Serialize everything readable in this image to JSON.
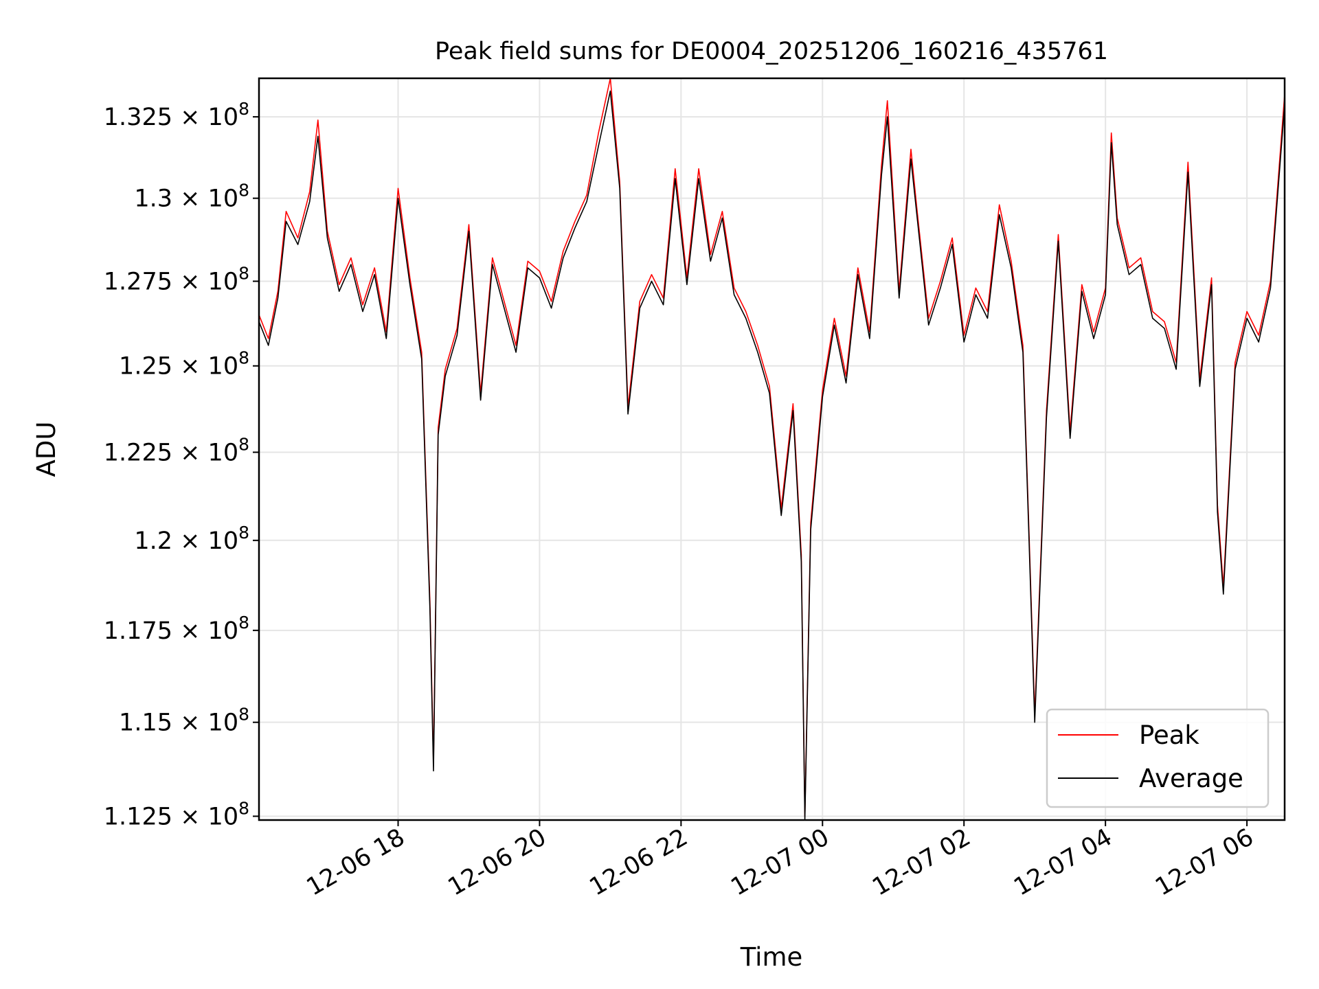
{
  "chart_data": {
    "type": "line",
    "title": "Peak field sums for DE0004_20251206_160216_435761",
    "xlabel": "Time",
    "ylabel": "ADU",
    "x_start": "2025-12-06 16:02",
    "x_end": "2025-12-07 06:32",
    "xlim": [
      "2025-12-06 16:02",
      "2025-12-07 06:32"
    ],
    "ylim": [
      112400000,
      133700000
    ],
    "x_ticks": [
      {
        "value": "2025-12-06 18:00",
        "label": "12-06 18"
      },
      {
        "value": "2025-12-06 20:00",
        "label": "12-06 20"
      },
      {
        "value": "2025-12-06 22:00",
        "label": "12-06 22"
      },
      {
        "value": "2025-12-07 00:00",
        "label": "12-07 00"
      },
      {
        "value": "2025-12-07 02:00",
        "label": "12-07 02"
      },
      {
        "value": "2025-12-07 04:00",
        "label": "12-07 04"
      },
      {
        "value": "2025-12-07 06:00",
        "label": "12-07 06"
      }
    ],
    "y_ticks": [
      {
        "value": 112500000,
        "mantissa": "1.125"
      },
      {
        "value": 115000000,
        "mantissa": "1.15"
      },
      {
        "value": 117500000,
        "mantissa": "1.175"
      },
      {
        "value": 120000000,
        "mantissa": "1.2"
      },
      {
        "value": 122500000,
        "mantissa": "1.225"
      },
      {
        "value": 125000000,
        "mantissa": "1.25"
      },
      {
        "value": 127500000,
        "mantissa": "1.275"
      },
      {
        "value": 130000000,
        "mantissa": "1.3"
      },
      {
        "value": 132500000,
        "mantissa": "1.325"
      }
    ],
    "y_tick_multiplier": "× 10",
    "y_tick_exponent": "8",
    "y_scale": "log",
    "grid": true,
    "legend_position": "lower-right",
    "series": [
      {
        "name": "Peak",
        "color": "#ff0000",
        "x": [
          "2025-12-06 16:02",
          "2025-12-06 16:10",
          "2025-12-06 16:18",
          "2025-12-06 16:25",
          "2025-12-06 16:35",
          "2025-12-06 16:45",
          "2025-12-06 16:52",
          "2025-12-06 17:00",
          "2025-12-06 17:10",
          "2025-12-06 17:20",
          "2025-12-06 17:30",
          "2025-12-06 17:40",
          "2025-12-06 17:50",
          "2025-12-06 18:00",
          "2025-12-06 18:10",
          "2025-12-06 18:20",
          "2025-12-06 18:27",
          "2025-12-06 18:30",
          "2025-12-06 18:34",
          "2025-12-06 18:40",
          "2025-12-06 18:50",
          "2025-12-06 19:00",
          "2025-12-06 19:10",
          "2025-12-06 19:20",
          "2025-12-06 19:30",
          "2025-12-06 19:40",
          "2025-12-06 19:50",
          "2025-12-06 20:00",
          "2025-12-06 20:10",
          "2025-12-06 20:20",
          "2025-12-06 20:30",
          "2025-12-06 20:40",
          "2025-12-06 20:50",
          "2025-12-06 21:00",
          "2025-12-06 21:08",
          "2025-12-06 21:15",
          "2025-12-06 21:25",
          "2025-12-06 21:35",
          "2025-12-06 21:45",
          "2025-12-06 21:55",
          "2025-12-06 22:05",
          "2025-12-06 22:15",
          "2025-12-06 22:25",
          "2025-12-06 22:35",
          "2025-12-06 22:45",
          "2025-12-06 22:55",
          "2025-12-06 23:05",
          "2025-12-06 23:15",
          "2025-12-06 23:25",
          "2025-12-06 23:35",
          "2025-12-06 23:42",
          "2025-12-06 23:45",
          "2025-12-06 23:50",
          "2025-12-07 00:00",
          "2025-12-07 00:10",
          "2025-12-07 00:20",
          "2025-12-07 00:30",
          "2025-12-07 00:40",
          "2025-12-07 00:50",
          "2025-12-07 00:55",
          "2025-12-07 01:05",
          "2025-12-07 01:15",
          "2025-12-07 01:20",
          "2025-12-07 01:30",
          "2025-12-07 01:40",
          "2025-12-07 01:50",
          "2025-12-07 02:00",
          "2025-12-07 02:10",
          "2025-12-07 02:20",
          "2025-12-07 02:30",
          "2025-12-07 02:40",
          "2025-12-07 02:50",
          "2025-12-07 02:55",
          "2025-12-07 03:00",
          "2025-12-07 03:10",
          "2025-12-07 03:20",
          "2025-12-07 03:30",
          "2025-12-07 03:40",
          "2025-12-07 03:50",
          "2025-12-07 04:00",
          "2025-12-07 04:05",
          "2025-12-07 04:10",
          "2025-12-07 04:20",
          "2025-12-07 04:30",
          "2025-12-07 04:40",
          "2025-12-07 04:50",
          "2025-12-07 05:00",
          "2025-12-07 05:10",
          "2025-12-07 05:20",
          "2025-12-07 05:30",
          "2025-12-07 05:35",
          "2025-12-07 05:40",
          "2025-12-07 05:50",
          "2025-12-07 06:00",
          "2025-12-07 06:10",
          "2025-12-07 06:20",
          "2025-12-07 06:32"
        ],
        "values": [
          126500000,
          125800000,
          127200000,
          129600000,
          128800000,
          130200000,
          132400000,
          129000000,
          127400000,
          128200000,
          126800000,
          127900000,
          126000000,
          130300000,
          127600000,
          125400000,
          118300000,
          113900000,
          123200000,
          124900000,
          126100000,
          129200000,
          124200000,
          128200000,
          126900000,
          125600000,
          128100000,
          127800000,
          126900000,
          128400000,
          129300000,
          130100000,
          132000000,
          133700000,
          130500000,
          123800000,
          126900000,
          127700000,
          127000000,
          130900000,
          127600000,
          130900000,
          128300000,
          129600000,
          127300000,
          126600000,
          125600000,
          124400000,
          120900000,
          123900000,
          119600000,
          112500000,
          120500000,
          124300000,
          126400000,
          124700000,
          127900000,
          126000000,
          131000000,
          133000000,
          127200000,
          131500000,
          129700000,
          126400000,
          127500000,
          128800000,
          125900000,
          127300000,
          126600000,
          129800000,
          128100000,
          125600000,
          120400000,
          115200000,
          123700000,
          128900000,
          123100000,
          127400000,
          126000000,
          127300000,
          132000000,
          129400000,
          127900000,
          128200000,
          126600000,
          126300000,
          125100000,
          131100000,
          124600000,
          127600000,
          121000000,
          118700000,
          125100000,
          126600000,
          125900000,
          127500000,
          133200000
        ]
      },
      {
        "name": "Average",
        "color": "#000000",
        "x": [
          "2025-12-06 16:02",
          "2025-12-06 16:10",
          "2025-12-06 16:18",
          "2025-12-06 16:25",
          "2025-12-06 16:35",
          "2025-12-06 16:45",
          "2025-12-06 16:52",
          "2025-12-06 17:00",
          "2025-12-06 17:10",
          "2025-12-06 17:20",
          "2025-12-06 17:30",
          "2025-12-06 17:40",
          "2025-12-06 17:50",
          "2025-12-06 18:00",
          "2025-12-06 18:10",
          "2025-12-06 18:20",
          "2025-12-06 18:27",
          "2025-12-06 18:30",
          "2025-12-06 18:34",
          "2025-12-06 18:40",
          "2025-12-06 18:50",
          "2025-12-06 19:00",
          "2025-12-06 19:10",
          "2025-12-06 19:20",
          "2025-12-06 19:30",
          "2025-12-06 19:40",
          "2025-12-06 19:50",
          "2025-12-06 20:00",
          "2025-12-06 20:10",
          "2025-12-06 20:20",
          "2025-12-06 20:30",
          "2025-12-06 20:40",
          "2025-12-06 20:50",
          "2025-12-06 21:00",
          "2025-12-06 21:08",
          "2025-12-06 21:15",
          "2025-12-06 21:25",
          "2025-12-06 21:35",
          "2025-12-06 21:45",
          "2025-12-06 21:55",
          "2025-12-06 22:05",
          "2025-12-06 22:15",
          "2025-12-06 22:25",
          "2025-12-06 22:35",
          "2025-12-06 22:45",
          "2025-12-06 22:55",
          "2025-12-06 23:05",
          "2025-12-06 23:15",
          "2025-12-06 23:25",
          "2025-12-06 23:35",
          "2025-12-06 23:42",
          "2025-12-06 23:45",
          "2025-12-06 23:50",
          "2025-12-07 00:00",
          "2025-12-07 00:10",
          "2025-12-07 00:20",
          "2025-12-07 00:30",
          "2025-12-07 00:40",
          "2025-12-07 00:50",
          "2025-12-07 00:55",
          "2025-12-07 01:05",
          "2025-12-07 01:15",
          "2025-12-07 01:20",
          "2025-12-07 01:30",
          "2025-12-07 01:40",
          "2025-12-07 01:50",
          "2025-12-07 02:00",
          "2025-12-07 02:10",
          "2025-12-07 02:20",
          "2025-12-07 02:30",
          "2025-12-07 02:40",
          "2025-12-07 02:50",
          "2025-12-07 02:55",
          "2025-12-07 03:00",
          "2025-12-07 03:10",
          "2025-12-07 03:20",
          "2025-12-07 03:30",
          "2025-12-07 03:40",
          "2025-12-07 03:50",
          "2025-12-07 04:00",
          "2025-12-07 04:05",
          "2025-12-07 04:10",
          "2025-12-07 04:20",
          "2025-12-07 04:30",
          "2025-12-07 04:40",
          "2025-12-07 04:50",
          "2025-12-07 05:00",
          "2025-12-07 05:10",
          "2025-12-07 05:20",
          "2025-12-07 05:30",
          "2025-12-07 05:35",
          "2025-12-07 05:40",
          "2025-12-07 05:50",
          "2025-12-07 06:00",
          "2025-12-07 06:10",
          "2025-12-07 06:20",
          "2025-12-07 06:32"
        ],
        "values": [
          126300000,
          125600000,
          127000000,
          129300000,
          128600000,
          129900000,
          131900000,
          128800000,
          127200000,
          128000000,
          126600000,
          127700000,
          125800000,
          130000000,
          127400000,
          125200000,
          118100000,
          113700000,
          123000000,
          124700000,
          125900000,
          129000000,
          124000000,
          128000000,
          126700000,
          125400000,
          127900000,
          127600000,
          126700000,
          128200000,
          129100000,
          129900000,
          131600000,
          133300000,
          130300000,
          123600000,
          126700000,
          127500000,
          126800000,
          130600000,
          127400000,
          130600000,
          128100000,
          129400000,
          127100000,
          126400000,
          125400000,
          124200000,
          120700000,
          123700000,
          119400000,
          112400000,
          120300000,
          124100000,
          126200000,
          124500000,
          127700000,
          125800000,
          130700000,
          132500000,
          127000000,
          131200000,
          129500000,
          126200000,
          127300000,
          128600000,
          125700000,
          127100000,
          126400000,
          129500000,
          127900000,
          125400000,
          120200000,
          115000000,
          123500000,
          128700000,
          122900000,
          127200000,
          125800000,
          127100000,
          131700000,
          129200000,
          127700000,
          128000000,
          126400000,
          126100000,
          124900000,
          130800000,
          124400000,
          127400000,
          120800000,
          118500000,
          124900000,
          126400000,
          125700000,
          127300000,
          132900000
        ]
      }
    ]
  }
}
